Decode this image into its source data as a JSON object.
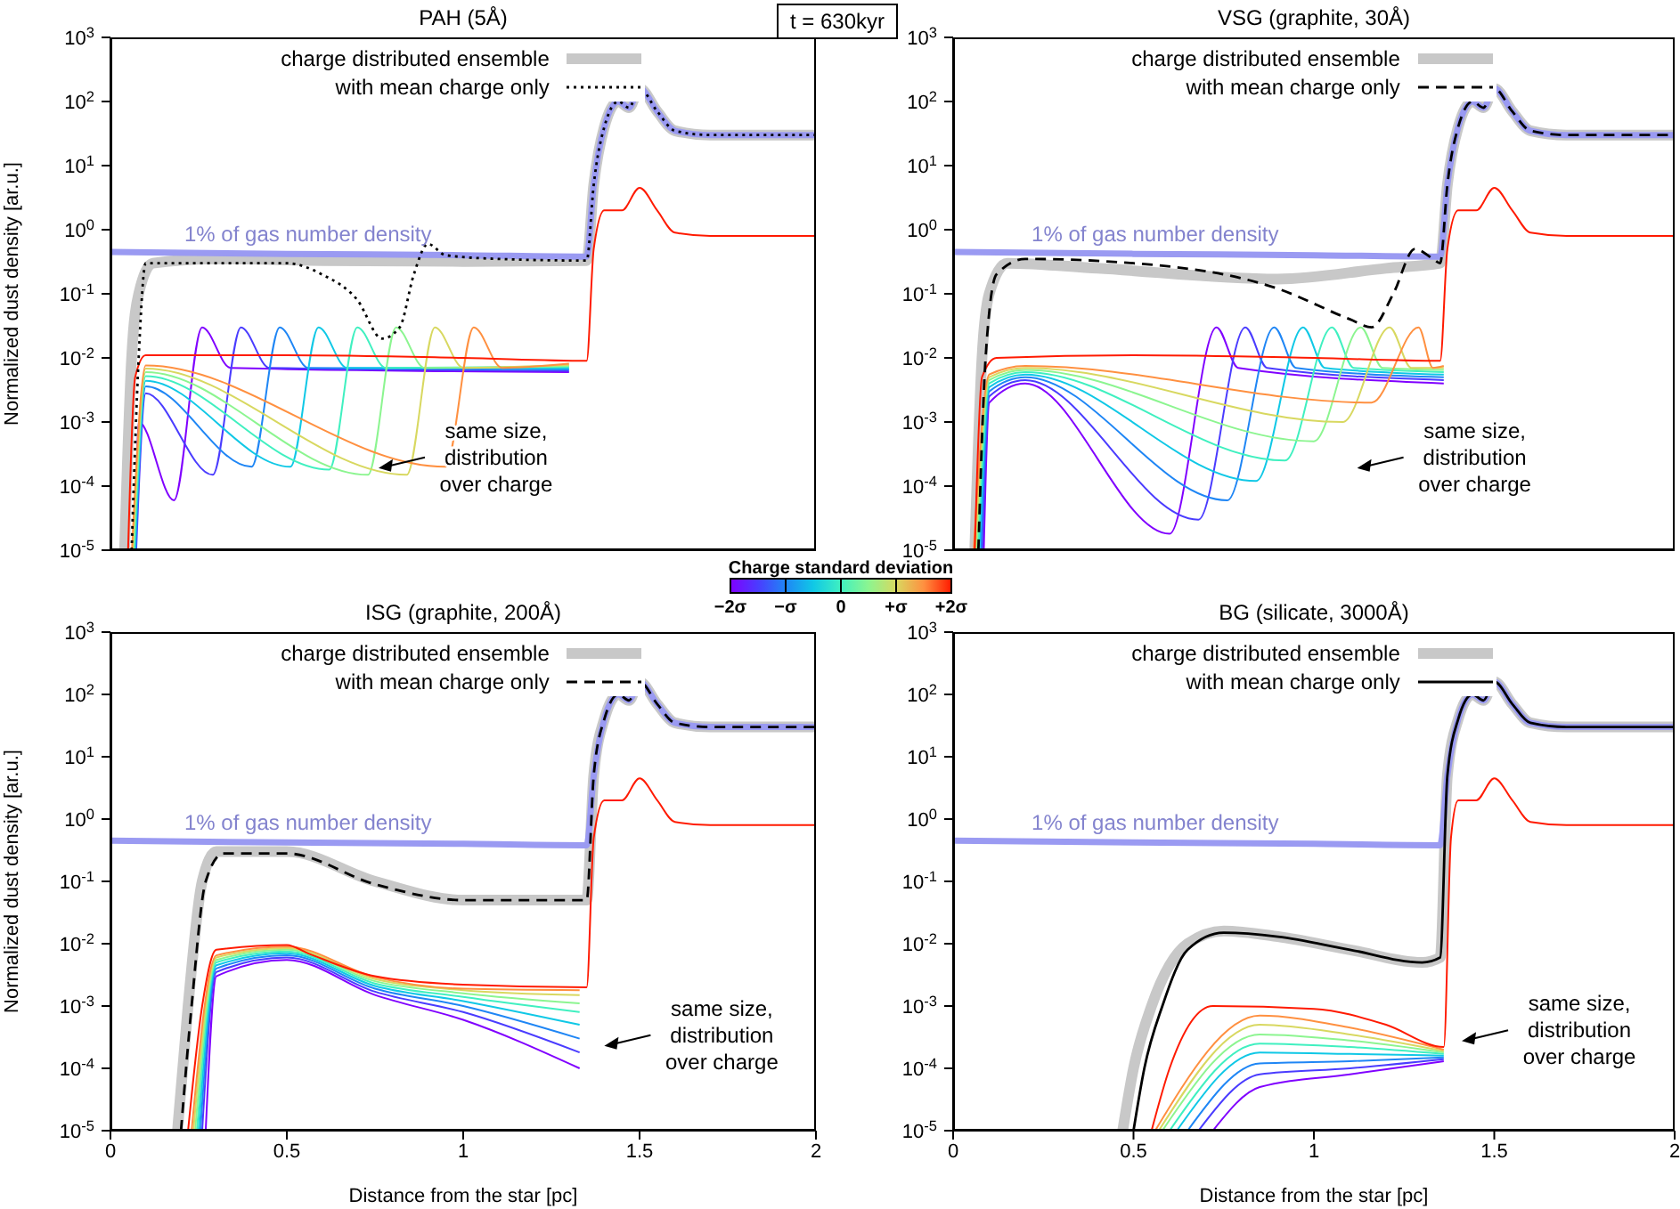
{
  "chart_data": [
    {
      "type": "line",
      "title": "PAH (5Å)",
      "subtitle": "t = 630kyr",
      "ylabel": "Normalized dust density [ar.u.]",
      "xlim": [
        0,
        2
      ],
      "ylim": [
        1e-05,
        1000
      ],
      "xticks": [
        0,
        0.5,
        1,
        1.5,
        2
      ],
      "yticks": [
        {
          "value": 1e-05,
          "label": "10$^{-5}$"
        },
        {
          "value": 0.0001,
          "label": "10$^{-4}$"
        },
        {
          "value": 0.001,
          "label": "10$^{-3}$"
        },
        {
          "value": 0.01,
          "label": "10$^{-2}$"
        },
        {
          "value": 0.1,
          "label": "10$^{-1}$"
        },
        {
          "value": 1,
          "label": "10$^{0}$"
        },
        {
          "value": 10,
          "label": "10$^{1}$"
        },
        {
          "value": 100,
          "label": "10$^{2}$"
        },
        {
          "value": 1000,
          "label": "10$^{3}$"
        }
      ],
      "log": "y",
      "legend": "top",
      "tick_labels": "y",
      "annotations": [
        "same size, distribution over charge"
      ],
      "series": [
        {
          "name": "charge distributed ensemble",
          "color": "#c8c8c8",
          "x": [
            0.04,
            0.06,
            0.08,
            0.12,
            0.3,
            0.6,
            1,
            1.35,
            1.37,
            1.4,
            1.44,
            1.47,
            1.5,
            1.55,
            1.6,
            1.7,
            2
          ],
          "values": [
            1e-05,
            0.01,
            0.1,
            0.3,
            0.35,
            0.33,
            0.32,
            0.33,
            5,
            40,
            100,
            80,
            160,
            70,
            35,
            30,
            30
          ]
        },
        {
          "name": "1% of gas number density",
          "color": "#9a9af2",
          "x": [
            0,
            0.5,
            1,
            1.35,
            1.37,
            1.4,
            1.44,
            1.47,
            1.5,
            1.55,
            1.6,
            1.7,
            2
          ],
          "values": [
            0.45,
            0.42,
            0.4,
            0.38,
            5,
            40,
            100,
            80,
            160,
            70,
            35,
            30,
            30
          ]
        },
        {
          "color": "#8000ff",
          "x": [
            0.07,
            0.08,
            0.18,
            0.26,
            0.34,
            1.3
          ],
          "values": [
            1e-05,
            0.001,
            6e-05,
            0.03,
            0.007,
            0.006
          ]
        },
        {
          "color": "#4a3cff",
          "x": [
            0.073,
            0.1,
            0.29,
            0.37,
            0.45,
            1.3
          ],
          "values": [
            1e-05,
            0.0028,
            0.00015,
            0.03,
            0.007,
            0.0063
          ]
        },
        {
          "color": "#1f86f5",
          "x": [
            0.071,
            0.1,
            0.4,
            0.48,
            0.56,
            1.3
          ],
          "values": [
            1e-05,
            0.0036,
            0.0002,
            0.03,
            0.007,
            0.0066
          ]
        },
        {
          "color": "#10c8e6",
          "x": [
            0.069,
            0.1,
            0.51,
            0.59,
            0.67,
            1.3
          ],
          "values": [
            1e-05,
            0.0044,
            0.0002,
            0.03,
            0.007,
            0.0069
          ]
        },
        {
          "color": "#40f0c0",
          "x": [
            0.067,
            0.1,
            0.62,
            0.7,
            0.78,
            1.3
          ],
          "values": [
            1e-05,
            0.0052,
            0.00018,
            0.03,
            0.007,
            0.0072
          ]
        },
        {
          "color": "#8cf590",
          "x": [
            0.065,
            0.1,
            0.73,
            0.81,
            0.89,
            1.3
          ],
          "values": [
            1e-05,
            0.006,
            0.00015,
            0.03,
            0.007,
            0.0075
          ]
        },
        {
          "color": "#d8d860",
          "x": [
            0.063,
            0.1,
            0.84,
            0.92,
            1,
            1.3
          ],
          "values": [
            1e-05,
            0.0068,
            0.00015,
            0.03,
            0.007,
            0.0078
          ]
        },
        {
          "color": "#ff9040",
          "x": [
            0.061,
            0.1,
            0.95,
            1.03,
            1.11,
            1.3
          ],
          "values": [
            1e-05,
            0.0076,
            0.0002,
            0.03,
            0.007,
            0.0081
          ]
        },
        {
          "color": "#ff1a00",
          "x": [
            0.05,
            0.07,
            0.1,
            0.5,
            1,
            1.35,
            1.37,
            1.4,
            1.45,
            1.5,
            1.55,
            1.6,
            1.7,
            2
          ],
          "values": [
            1e-05,
            0.005,
            0.011,
            0.011,
            0.01,
            0.009,
            0.5,
            2,
            2,
            4.5,
            2,
            0.9,
            0.8,
            0.8
          ]
        },
        {
          "name": "with mean charge only",
          "color": "#000000",
          "line_style": "dotted",
          "x": [
            0.06,
            0.08,
            0.1,
            0.5,
            0.6,
            0.7,
            0.77,
            0.82,
            0.86,
            0.9,
            0.95,
            1.1,
            1.35,
            1.37,
            1.4,
            1.44,
            1.47,
            1.5,
            1.55,
            1.6,
            1.7,
            2
          ],
          "values": [
            1e-05,
            0.01,
            0.3,
            0.3,
            0.2,
            0.08,
            0.02,
            0.03,
            0.2,
            0.6,
            0.4,
            0.35,
            0.33,
            5,
            40,
            100,
            80,
            160,
            70,
            35,
            30,
            30
          ]
        }
      ]
    },
    {
      "type": "line",
      "title": "VSG (graphite, 30Å)",
      "xlim": [
        0,
        2
      ],
      "ylim": [
        1e-05,
        1000
      ],
      "xticks": [
        0,
        0.5,
        1,
        1.5,
        2
      ],
      "yticks": [
        {
          "value": 1e-05,
          "label": "10$^{-5}$"
        },
        {
          "value": 0.0001,
          "label": "10$^{-4}$"
        },
        {
          "value": 0.001,
          "label": "10$^{-3}$"
        },
        {
          "value": 0.01,
          "label": "10$^{-2}$"
        },
        {
          "value": 0.1,
          "label": "10$^{-1}$"
        },
        {
          "value": 1,
          "label": "10$^{0}$"
        },
        {
          "value": 10,
          "label": "10$^{1}$"
        },
        {
          "value": 100,
          "label": "10$^{2}$"
        },
        {
          "value": 1000,
          "label": "10$^{3}$"
        }
      ],
      "log": "y",
      "legend": "top",
      "tick_labels": "y",
      "annotations": [
        "same size, distribution over charge"
      ],
      "series": [
        {
          "name": "charge distributed ensemble",
          "color": "#c8c8c8",
          "x": [
            0.06,
            0.08,
            0.1,
            0.15,
            0.4,
            0.9,
            1.2,
            1.35,
            1.37,
            1.4,
            1.44,
            1.47,
            1.5,
            1.55,
            1.6,
            1.7,
            2
          ],
          "values": [
            1e-05,
            0.01,
            0.1,
            0.3,
            0.25,
            0.17,
            0.25,
            0.3,
            5,
            40,
            100,
            80,
            160,
            70,
            35,
            30,
            30
          ]
        },
        {
          "name": "1% of gas number density",
          "color": "#9a9af2",
          "x": [
            0,
            0.5,
            1,
            1.35,
            1.37,
            1.4,
            1.44,
            1.47,
            1.5,
            1.55,
            1.6,
            1.7,
            2
          ],
          "values": [
            0.45,
            0.42,
            0.4,
            0.38,
            5,
            40,
            100,
            80,
            160,
            70,
            35,
            30,
            30
          ]
        },
        {
          "color": "#8000ff",
          "x": [
            0.085,
            0.1,
            0.2,
            0.6,
            0.73,
            0.79,
            1.36
          ],
          "values": [
            1e-05,
            0.002,
            0.004,
            1.8e-05,
            0.03,
            0.007,
            0.004
          ]
        },
        {
          "color": "#4a3cff",
          "x": [
            0.081,
            0.1,
            0.2,
            0.68,
            0.81,
            0.87,
            1.36
          ],
          "values": [
            1e-05,
            0.0025,
            0.0045,
            3e-05,
            0.03,
            0.007,
            0.0045
          ]
        },
        {
          "color": "#1f86f5",
          "x": [
            0.077,
            0.1,
            0.2,
            0.76,
            0.89,
            0.95,
            1.36
          ],
          "values": [
            1e-05,
            0.003,
            0.005,
            6e-05,
            0.03,
            0.007,
            0.005
          ]
        },
        {
          "color": "#10c8e6",
          "x": [
            0.073,
            0.1,
            0.2,
            0.84,
            0.97,
            1.03,
            1.36
          ],
          "values": [
            1e-05,
            0.0035,
            0.0055,
            0.00012,
            0.03,
            0.007,
            0.0055
          ]
        },
        {
          "color": "#40f0c0",
          "x": [
            0.069,
            0.1,
            0.2,
            0.92,
            1.05,
            1.11,
            1.36
          ],
          "values": [
            1e-05,
            0.004,
            0.006,
            0.00025,
            0.03,
            0.007,
            0.006
          ]
        },
        {
          "color": "#8cf590",
          "x": [
            0.065,
            0.1,
            0.2,
            1,
            1.13,
            1.19,
            1.36
          ],
          "values": [
            1e-05,
            0.0045,
            0.0065,
            0.0005,
            0.03,
            0.007,
            0.0065
          ]
        },
        {
          "color": "#d8d860",
          "x": [
            0.061,
            0.1,
            0.2,
            1.08,
            1.21,
            1.27,
            1.36
          ],
          "values": [
            1e-05,
            0.005,
            0.007,
            0.001,
            0.03,
            0.007,
            0.007
          ]
        },
        {
          "color": "#ff9040",
          "x": [
            0.057,
            0.1,
            0.2,
            1.16,
            1.29,
            1.33,
            1.36
          ],
          "values": [
            1e-05,
            0.0055,
            0.0075,
            0.002,
            0.03,
            0.007,
            0.0075
          ]
        },
        {
          "color": "#ff1a00",
          "x": [
            0.06,
            0.08,
            0.12,
            0.5,
            1,
            1.35,
            1.37,
            1.4,
            1.45,
            1.5,
            1.55,
            1.6,
            1.7,
            2
          ],
          "values": [
            1e-05,
            0.005,
            0.01,
            0.011,
            0.01,
            0.009,
            0.5,
            2,
            2,
            4.5,
            2,
            0.9,
            0.8,
            0.8
          ]
        },
        {
          "name": "with mean charge only",
          "color": "#000000",
          "line_style": "dashed",
          "x": [
            0.07,
            0.09,
            0.12,
            0.2,
            0.5,
            0.9,
            1.1,
            1.16,
            1.22,
            1.28,
            1.33,
            1.35,
            1.37,
            1.4,
            1.44,
            1.47,
            1.5,
            1.55,
            1.6,
            1.7,
            2
          ],
          "values": [
            1e-05,
            0.01,
            0.2,
            0.35,
            0.3,
            0.12,
            0.04,
            0.03,
            0.1,
            0.5,
            0.35,
            0.3,
            5,
            40,
            100,
            80,
            160,
            70,
            35,
            30,
            30
          ]
        }
      ]
    },
    {
      "type": "line",
      "title": "ISG (graphite, 200Å)",
      "xlabel": "Distance from the star [pc]",
      "ylabel": "Normalized dust density [ar.u.]",
      "xlim": [
        0,
        2
      ],
      "ylim": [
        1e-05,
        1000
      ],
      "xticks": [
        0,
        0.5,
        1,
        1.5,
        2
      ],
      "yticks": [
        {
          "value": 1e-05,
          "label": "10$^{-5}$"
        },
        {
          "value": 0.0001,
          "label": "10$^{-4}$"
        },
        {
          "value": 0.001,
          "label": "10$^{-3}$"
        },
        {
          "value": 0.01,
          "label": "10$^{-2}$"
        },
        {
          "value": 0.1,
          "label": "10$^{-1}$"
        },
        {
          "value": 1,
          "label": "10$^{0}$"
        },
        {
          "value": 10,
          "label": "10$^{1}$"
        },
        {
          "value": 100,
          "label": "10$^{2}$"
        },
        {
          "value": 1000,
          "label": "10$^{3}$"
        }
      ],
      "log": "y",
      "legend": "top",
      "clabel": "Charge standard deviation",
      "clim": [
        -2,
        2
      ],
      "cticks": [
        {
          "value": -2,
          "label": "−2σ"
        },
        {
          "value": -1,
          "label": "−σ"
        },
        0,
        {
          "value": 1,
          "label": "+σ"
        },
        {
          "value": 2,
          "label": "+2σ"
        }
      ],
      "annotations": [
        "same size, distribution over charge"
      ],
      "series": [
        {
          "name": "charge distributed ensemble",
          "color": "#c8c8c8",
          "x": [
            0.19,
            0.22,
            0.26,
            0.3,
            0.5,
            0.75,
            1,
            1.35,
            1.37,
            1.4,
            1.44,
            1.47,
            1.5,
            1.55,
            1.6,
            1.7,
            2
          ],
          "values": [
            1e-05,
            0.001,
            0.1,
            0.3,
            0.3,
            0.1,
            0.05,
            0.05,
            5,
            40,
            100,
            80,
            160,
            70,
            35,
            30,
            30
          ]
        },
        {
          "name": "1% of gas number density",
          "color": "#9a9af2",
          "x": [
            0,
            0.5,
            1,
            1.35,
            1.37,
            1.4,
            1.44,
            1.47,
            1.5,
            1.55,
            1.6,
            1.7,
            2
          ],
          "values": [
            0.45,
            0.42,
            0.4,
            0.38,
            5,
            40,
            100,
            80,
            160,
            70,
            35,
            30,
            30
          ]
        },
        {
          "color": "#8000ff",
          "x": [
            0.27,
            0.3,
            0.5,
            0.75,
            1,
            1.33
          ],
          "values": [
            1e-05,
            0.003,
            0.0055,
            0.0015,
            0.0006,
            0.0001
          ]
        },
        {
          "color": "#4a3cff",
          "x": [
            0.26,
            0.3,
            0.5,
            0.75,
            1,
            1.33
          ],
          "values": [
            1e-05,
            0.0035,
            0.006,
            0.0017,
            0.0008,
            0.00018
          ]
        },
        {
          "color": "#1f86f5",
          "x": [
            0.255,
            0.3,
            0.5,
            0.75,
            1,
            1.33
          ],
          "values": [
            1e-05,
            0.004,
            0.0065,
            0.0019,
            0.001,
            0.0003
          ]
        },
        {
          "color": "#10c8e6",
          "x": [
            0.25,
            0.3,
            0.5,
            0.75,
            1,
            1.33
          ],
          "values": [
            1e-05,
            0.0045,
            0.007,
            0.0021,
            0.0012,
            0.0005
          ]
        },
        {
          "color": "#40f0c0",
          "x": [
            0.245,
            0.3,
            0.5,
            0.75,
            1,
            1.33
          ],
          "values": [
            1e-05,
            0.005,
            0.0075,
            0.0023,
            0.0014,
            0.0008
          ]
        },
        {
          "color": "#8cf590",
          "x": [
            0.24,
            0.3,
            0.5,
            0.75,
            1,
            1.33
          ],
          "values": [
            1e-05,
            0.0055,
            0.008,
            0.0025,
            0.0016,
            0.0011
          ]
        },
        {
          "color": "#d8d860",
          "x": [
            0.235,
            0.3,
            0.5,
            0.75,
            1,
            1.33
          ],
          "values": [
            1e-05,
            0.006,
            0.0085,
            0.0027,
            0.0018,
            0.0015
          ]
        },
        {
          "color": "#ff9040",
          "x": [
            0.23,
            0.3,
            0.5,
            0.75,
            1,
            1.33
          ],
          "values": [
            1e-05,
            0.0065,
            0.009,
            0.0029,
            0.0019,
            0.0018
          ]
        },
        {
          "color": "#ff1a00",
          "x": [
            0.22,
            0.26,
            0.3,
            0.5,
            0.56,
            0.75,
            1,
            1.35,
            1.37,
            1.4,
            1.45,
            1.5,
            1.55,
            1.6,
            1.7,
            2
          ],
          "values": [
            1e-05,
            0.001,
            0.008,
            0.0095,
            0.007,
            0.003,
            0.0022,
            0.002,
            0.5,
            2,
            2,
            4.5,
            2,
            0.9,
            0.8,
            0.8
          ]
        },
        {
          "name": "with mean charge only",
          "color": "#000000",
          "line_style": "dashed",
          "x": [
            0.2,
            0.23,
            0.27,
            0.32,
            0.5,
            0.75,
            1,
            1.35,
            1.37,
            1.4,
            1.44,
            1.47,
            1.5,
            1.55,
            1.6,
            1.7,
            2
          ],
          "values": [
            1e-05,
            0.001,
            0.1,
            0.28,
            0.28,
            0.09,
            0.05,
            0.05,
            5,
            40,
            100,
            80,
            160,
            70,
            35,
            30,
            30
          ]
        }
      ]
    },
    {
      "type": "line",
      "title": "BG (silicate, 3000Å)",
      "xlabel": "Distance from the star [pc]",
      "xlim": [
        0,
        2
      ],
      "ylim": [
        1e-05,
        1000
      ],
      "xticks": [
        0,
        0.5,
        1,
        1.5,
        2
      ],
      "yticks": [
        {
          "value": 1e-05,
          "label": "10$^{-5}$"
        },
        {
          "value": 0.0001,
          "label": "10$^{-4}$"
        },
        {
          "value": 0.001,
          "label": "10$^{-3}$"
        },
        {
          "value": 0.01,
          "label": "10$^{-2}$"
        },
        {
          "value": 0.1,
          "label": "10$^{-1}$"
        },
        {
          "value": 1,
          "label": "10$^{0}$"
        },
        {
          "value": 10,
          "label": "10$^{1}$"
        },
        {
          "value": 100,
          "label": "10$^{2}$"
        },
        {
          "value": 1000,
          "label": "10$^{3}$"
        }
      ],
      "log": "y",
      "legend": "top",
      "annotations": [
        "same size, distribution over charge"
      ],
      "series": [
        {
          "name": "charge distributed ensemble",
          "color": "#c8c8c8",
          "x": [
            0.47,
            0.5,
            0.55,
            0.65,
            0.75,
            0.9,
            1.1,
            1.3,
            1.35,
            1.37,
            1.4,
            1.44,
            1.47,
            1.5,
            1.55,
            1.6,
            1.7,
            2
          ],
          "values": [
            1e-05,
            0.0001,
            0.001,
            0.01,
            0.016,
            0.013,
            0.008,
            0.005,
            0.006,
            5,
            40,
            100,
            80,
            160,
            70,
            35,
            30,
            30
          ]
        },
        {
          "name": "1% of gas number density",
          "color": "#9a9af2",
          "x": [
            0,
            0.5,
            1,
            1.35,
            1.37,
            1.4,
            1.44,
            1.47,
            1.5,
            1.55,
            1.6,
            1.7,
            2
          ],
          "values": [
            0.45,
            0.42,
            0.4,
            0.38,
            5,
            40,
            100,
            80,
            160,
            70,
            35,
            30,
            30
          ]
        },
        {
          "color": "#8000ff",
          "x": [
            0.72,
            0.85,
            1.1,
            1.36
          ],
          "values": [
            1e-05,
            5e-05,
            8e-05,
            0.00013
          ]
        },
        {
          "color": "#4a3cff",
          "x": [
            0.68,
            0.85,
            1.1,
            1.36
          ],
          "values": [
            1e-05,
            8e-05,
            0.0001,
            0.00014
          ]
        },
        {
          "color": "#1f86f5",
          "x": [
            0.65,
            0.85,
            1.1,
            1.36
          ],
          "values": [
            1e-05,
            0.00012,
            0.00013,
            0.00015
          ]
        },
        {
          "color": "#10c8e6",
          "x": [
            0.62,
            0.85,
            1.1,
            1.36
          ],
          "values": [
            1e-05,
            0.00018,
            0.00017,
            0.00016
          ]
        },
        {
          "color": "#40f0c0",
          "x": [
            0.6,
            0.85,
            1.1,
            1.36
          ],
          "values": [
            1e-05,
            0.00025,
            0.00022,
            0.00017
          ]
        },
        {
          "color": "#8cf590",
          "x": [
            0.58,
            0.85,
            1.1,
            1.36
          ],
          "values": [
            1e-05,
            0.00035,
            0.00028,
            0.00018
          ]
        },
        {
          "color": "#d8d860",
          "x": [
            0.57,
            0.85,
            1.1,
            1.36
          ],
          "values": [
            1e-05,
            0.0005,
            0.00035,
            0.00019
          ]
        },
        {
          "color": "#ff9040",
          "x": [
            0.56,
            0.85,
            1.1,
            1.36
          ],
          "values": [
            1e-05,
            0.0007,
            0.00045,
            0.0002
          ]
        },
        {
          "color": "#ff1a00",
          "x": [
            0.55,
            0.6,
            0.72,
            1,
            1.2,
            1.36,
            1.38,
            1.4,
            1.45,
            1.5,
            1.55,
            1.6,
            1.7,
            2
          ],
          "values": [
            1e-05,
            0.0001,
            0.001,
            0.0009,
            0.0005,
            0.00022,
            0.5,
            2,
            2,
            4.5,
            2,
            0.9,
            0.8,
            0.8
          ]
        },
        {
          "name": "with mean charge only",
          "color": "#000000",
          "line_style": "solid",
          "x": [
            0.5,
            0.53,
            0.58,
            0.65,
            0.75,
            0.9,
            1.1,
            1.3,
            1.35,
            1.37,
            1.4,
            1.44,
            1.47,
            1.5,
            1.55,
            1.6,
            1.7,
            2
          ],
          "values": [
            1e-05,
            0.0001,
            0.001,
            0.008,
            0.015,
            0.013,
            0.008,
            0.005,
            0.006,
            5,
            40,
            100,
            80,
            160,
            70,
            35,
            30,
            30
          ]
        }
      ]
    }
  ]
}
